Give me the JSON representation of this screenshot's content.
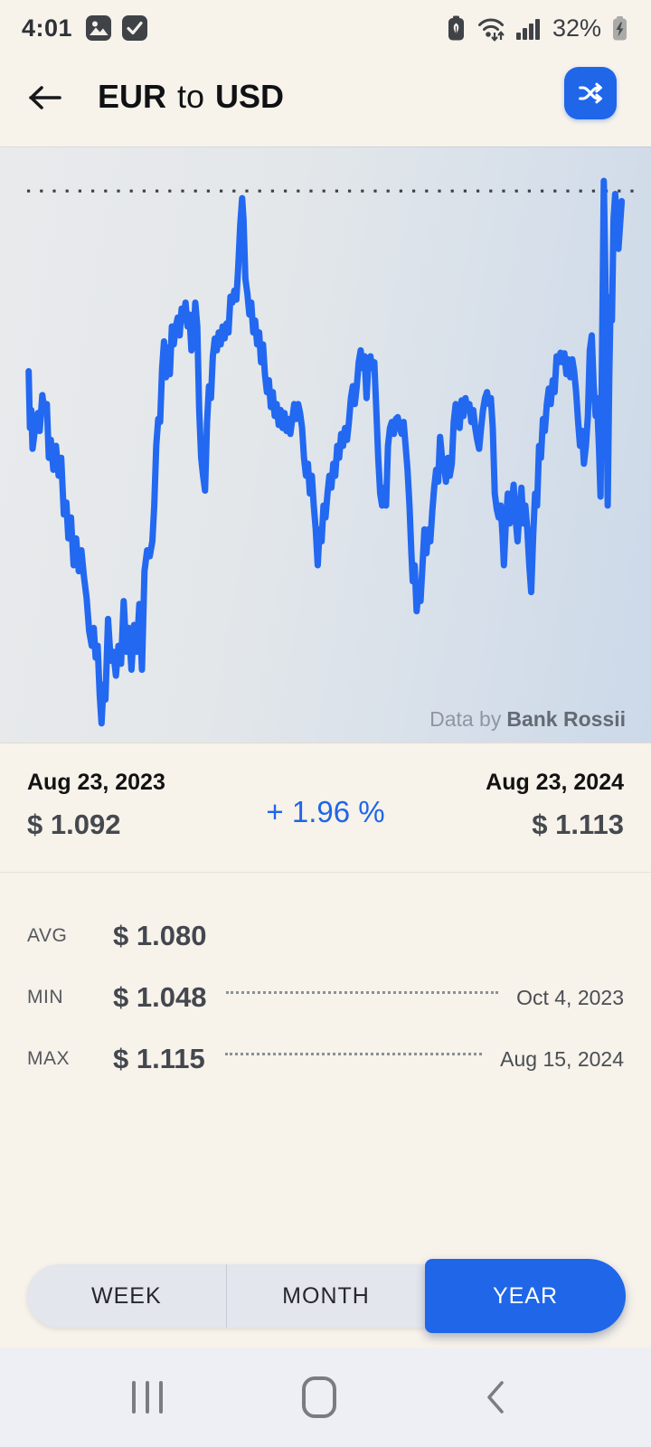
{
  "status_bar": {
    "time": "4:01",
    "battery_percent": "32%",
    "left_icons": [
      "screenshot-icon",
      "checkmark-icon"
    ],
    "right_icons": [
      "battery-saver-icon",
      "wifi-arrows-icon",
      "signal-bars-icon",
      "battery-charging-icon"
    ]
  },
  "header": {
    "title_from": "EUR",
    "title_connector": "to",
    "title_to": "USD",
    "back_label": "back",
    "swap_label": "swap-currencies"
  },
  "chart": {
    "source_prefix": "Data by",
    "source_name": "Bank Rossii"
  },
  "chart_data": {
    "type": "line",
    "title": "EUR to USD exchange rate, 1 year",
    "x_range": [
      "Aug 23, 2023",
      "Aug 23, 2024"
    ],
    "y_unit": "USD per EUR",
    "start_value": 1.092,
    "end_value": 1.113,
    "avg_value": 1.08,
    "min": {
      "value": 1.048,
      "date": "Oct 4, 2023"
    },
    "max": {
      "value": 1.115,
      "date": "Aug 15, 2024"
    },
    "change_percent": 1.96,
    "line_color": "#2268f0",
    "max_line_frac": 0.073,
    "grid": "none",
    "path": [
      [
        0.044,
        0.375
      ],
      [
        0.046,
        0.47
      ],
      [
        0.048,
        0.44
      ],
      [
        0.05,
        0.505
      ],
      [
        0.054,
        0.47
      ],
      [
        0.058,
        0.445
      ],
      [
        0.061,
        0.475
      ],
      [
        0.065,
        0.415
      ],
      [
        0.068,
        0.44
      ],
      [
        0.072,
        0.43
      ],
      [
        0.075,
        0.52
      ],
      [
        0.078,
        0.49
      ],
      [
        0.082,
        0.54
      ],
      [
        0.086,
        0.5
      ],
      [
        0.09,
        0.55
      ],
      [
        0.094,
        0.52
      ],
      [
        0.098,
        0.615
      ],
      [
        0.102,
        0.595
      ],
      [
        0.105,
        0.655
      ],
      [
        0.109,
        0.62
      ],
      [
        0.113,
        0.7
      ],
      [
        0.117,
        0.655
      ],
      [
        0.121,
        0.71
      ],
      [
        0.125,
        0.675
      ],
      [
        0.129,
        0.72
      ],
      [
        0.133,
        0.755
      ],
      [
        0.137,
        0.81
      ],
      [
        0.141,
        0.835
      ],
      [
        0.144,
        0.805
      ],
      [
        0.147,
        0.855
      ],
      [
        0.15,
        0.835
      ],
      [
        0.153,
        0.915
      ],
      [
        0.156,
        0.965
      ],
      [
        0.159,
        0.9
      ],
      [
        0.162,
        0.925
      ],
      [
        0.166,
        0.79
      ],
      [
        0.17,
        0.86
      ],
      [
        0.174,
        0.845
      ],
      [
        0.178,
        0.885
      ],
      [
        0.182,
        0.835
      ],
      [
        0.186,
        0.865
      ],
      [
        0.19,
        0.76
      ],
      [
        0.194,
        0.845
      ],
      [
        0.198,
        0.805
      ],
      [
        0.202,
        0.875
      ],
      [
        0.206,
        0.8
      ],
      [
        0.21,
        0.845
      ],
      [
        0.214,
        0.765
      ],
      [
        0.218,
        0.875
      ],
      [
        0.222,
        0.71
      ],
      [
        0.226,
        0.675
      ],
      [
        0.23,
        0.685
      ],
      [
        0.234,
        0.66
      ],
      [
        0.237,
        0.6
      ],
      [
        0.24,
        0.5
      ],
      [
        0.243,
        0.455
      ],
      [
        0.246,
        0.46
      ],
      [
        0.249,
        0.37
      ],
      [
        0.252,
        0.325
      ],
      [
        0.255,
        0.385
      ],
      [
        0.258,
        0.335
      ],
      [
        0.261,
        0.38
      ],
      [
        0.264,
        0.3
      ],
      [
        0.267,
        0.33
      ],
      [
        0.27,
        0.3
      ],
      [
        0.273,
        0.285
      ],
      [
        0.276,
        0.315
      ],
      [
        0.279,
        0.27
      ],
      [
        0.282,
        0.29
      ],
      [
        0.285,
        0.26
      ],
      [
        0.288,
        0.3
      ],
      [
        0.291,
        0.28
      ],
      [
        0.294,
        0.34
      ],
      [
        0.297,
        0.32
      ],
      [
        0.3,
        0.26
      ],
      [
        0.303,
        0.3
      ],
      [
        0.306,
        0.44
      ],
      [
        0.309,
        0.52
      ],
      [
        0.312,
        0.55
      ],
      [
        0.315,
        0.575
      ],
      [
        0.318,
        0.46
      ],
      [
        0.321,
        0.4
      ],
      [
        0.324,
        0.42
      ],
      [
        0.327,
        0.35
      ],
      [
        0.33,
        0.32
      ],
      [
        0.333,
        0.34
      ],
      [
        0.336,
        0.31
      ],
      [
        0.339,
        0.33
      ],
      [
        0.342,
        0.3
      ],
      [
        0.345,
        0.32
      ],
      [
        0.348,
        0.295
      ],
      [
        0.351,
        0.31
      ],
      [
        0.354,
        0.25
      ],
      [
        0.357,
        0.26
      ],
      [
        0.36,
        0.24
      ],
      [
        0.363,
        0.255
      ],
      [
        0.366,
        0.2
      ],
      [
        0.369,
        0.13
      ],
      [
        0.372,
        0.085
      ],
      [
        0.374,
        0.12
      ],
      [
        0.377,
        0.22
      ],
      [
        0.38,
        0.245
      ],
      [
        0.383,
        0.28
      ],
      [
        0.386,
        0.26
      ],
      [
        0.389,
        0.31
      ],
      [
        0.392,
        0.29
      ],
      [
        0.395,
        0.33
      ],
      [
        0.398,
        0.31
      ],
      [
        0.401,
        0.36
      ],
      [
        0.404,
        0.33
      ],
      [
        0.407,
        0.38
      ],
      [
        0.41,
        0.41
      ],
      [
        0.413,
        0.39
      ],
      [
        0.416,
        0.435
      ],
      [
        0.419,
        0.41
      ],
      [
        0.422,
        0.45
      ],
      [
        0.425,
        0.43
      ],
      [
        0.428,
        0.465
      ],
      [
        0.431,
        0.44
      ],
      [
        0.434,
        0.47
      ],
      [
        0.437,
        0.445
      ],
      [
        0.44,
        0.475
      ],
      [
        0.443,
        0.455
      ],
      [
        0.446,
        0.48
      ],
      [
        0.449,
        0.455
      ],
      [
        0.452,
        0.43
      ],
      [
        0.455,
        0.455
      ],
      [
        0.458,
        0.43
      ],
      [
        0.461,
        0.445
      ],
      [
        0.464,
        0.47
      ],
      [
        0.467,
        0.52
      ],
      [
        0.47,
        0.55
      ],
      [
        0.473,
        0.53
      ],
      [
        0.476,
        0.58
      ],
      [
        0.479,
        0.55
      ],
      [
        0.482,
        0.6
      ],
      [
        0.485,
        0.64
      ],
      [
        0.488,
        0.7
      ],
      [
        0.491,
        0.64
      ],
      [
        0.494,
        0.66
      ],
      [
        0.497,
        0.6
      ],
      [
        0.5,
        0.62
      ],
      [
        0.503,
        0.58
      ],
      [
        0.506,
        0.55
      ],
      [
        0.509,
        0.57
      ],
      [
        0.512,
        0.53
      ],
      [
        0.515,
        0.55
      ],
      [
        0.518,
        0.5
      ],
      [
        0.521,
        0.52
      ],
      [
        0.524,
        0.48
      ],
      [
        0.527,
        0.5
      ],
      [
        0.53,
        0.47
      ],
      [
        0.533,
        0.49
      ],
      [
        0.536,
        0.46
      ],
      [
        0.539,
        0.42
      ],
      [
        0.542,
        0.4
      ],
      [
        0.545,
        0.43
      ],
      [
        0.548,
        0.4
      ],
      [
        0.551,
        0.36
      ],
      [
        0.554,
        0.34
      ],
      [
        0.557,
        0.37
      ],
      [
        0.56,
        0.35
      ],
      [
        0.563,
        0.42
      ],
      [
        0.566,
        0.36
      ],
      [
        0.569,
        0.35
      ],
      [
        0.572,
        0.37
      ],
      [
        0.575,
        0.36
      ],
      [
        0.578,
        0.44
      ],
      [
        0.581,
        0.52
      ],
      [
        0.584,
        0.58
      ],
      [
        0.587,
        0.6
      ],
      [
        0.59,
        0.57
      ],
      [
        0.593,
        0.6
      ],
      [
        0.596,
        0.5
      ],
      [
        0.599,
        0.47
      ],
      [
        0.602,
        0.46
      ],
      [
        0.605,
        0.48
      ],
      [
        0.608,
        0.455
      ],
      [
        0.611,
        0.452
      ],
      [
        0.614,
        0.47
      ],
      [
        0.617,
        0.48
      ],
      [
        0.62,
        0.46
      ],
      [
        0.623,
        0.5
      ],
      [
        0.626,
        0.54
      ],
      [
        0.629,
        0.6
      ],
      [
        0.632,
        0.68
      ],
      [
        0.634,
        0.727
      ],
      [
        0.637,
        0.7
      ],
      [
        0.64,
        0.777
      ],
      [
        0.643,
        0.74
      ],
      [
        0.646,
        0.76
      ],
      [
        0.649,
        0.7
      ],
      [
        0.652,
        0.64
      ],
      [
        0.655,
        0.68
      ],
      [
        0.658,
        0.64
      ],
      [
        0.661,
        0.66
      ],
      [
        0.664,
        0.61
      ],
      [
        0.667,
        0.57
      ],
      [
        0.67,
        0.54
      ],
      [
        0.673,
        0.56
      ],
      [
        0.676,
        0.485
      ],
      [
        0.679,
        0.52
      ],
      [
        0.682,
        0.53
      ],
      [
        0.685,
        0.56
      ],
      [
        0.688,
        0.52
      ],
      [
        0.691,
        0.55
      ],
      [
        0.694,
        0.53
      ],
      [
        0.697,
        0.46
      ],
      [
        0.7,
        0.43
      ],
      [
        0.703,
        0.46
      ],
      [
        0.706,
        0.47
      ],
      [
        0.709,
        0.424
      ],
      [
        0.712,
        0.45
      ],
      [
        0.715,
        0.42
      ],
      [
        0.718,
        0.44
      ],
      [
        0.721,
        0.43
      ],
      [
        0.724,
        0.46
      ],
      [
        0.727,
        0.44
      ],
      [
        0.73,
        0.47
      ],
      [
        0.733,
        0.49
      ],
      [
        0.736,
        0.505
      ],
      [
        0.739,
        0.47
      ],
      [
        0.742,
        0.44
      ],
      [
        0.745,
        0.42
      ],
      [
        0.748,
        0.41
      ],
      [
        0.751,
        0.43
      ],
      [
        0.754,
        0.42
      ],
      [
        0.757,
        0.47
      ],
      [
        0.76,
        0.58
      ],
      [
        0.763,
        0.606
      ],
      [
        0.766,
        0.62
      ],
      [
        0.769,
        0.6
      ],
      [
        0.772,
        0.65
      ],
      [
        0.774,
        0.7
      ],
      [
        0.777,
        0.63
      ],
      [
        0.78,
        0.58
      ],
      [
        0.783,
        0.63
      ],
      [
        0.786,
        0.6
      ],
      [
        0.789,
        0.565
      ],
      [
        0.792,
        0.62
      ],
      [
        0.795,
        0.66
      ],
      [
        0.798,
        0.61
      ],
      [
        0.801,
        0.57
      ],
      [
        0.804,
        0.63
      ],
      [
        0.807,
        0.6
      ],
      [
        0.81,
        0.64
      ],
      [
        0.813,
        0.7
      ],
      [
        0.816,
        0.745
      ],
      [
        0.819,
        0.65
      ],
      [
        0.822,
        0.58
      ],
      [
        0.825,
        0.6
      ],
      [
        0.828,
        0.5
      ],
      [
        0.831,
        0.52
      ],
      [
        0.834,
        0.455
      ],
      [
        0.837,
        0.475
      ],
      [
        0.84,
        0.43
      ],
      [
        0.843,
        0.404
      ],
      [
        0.846,
        0.43
      ],
      [
        0.849,
        0.39
      ],
      [
        0.852,
        0.41
      ],
      [
        0.855,
        0.35
      ],
      [
        0.858,
        0.36
      ],
      [
        0.861,
        0.344
      ],
      [
        0.864,
        0.36
      ],
      [
        0.867,
        0.345
      ],
      [
        0.87,
        0.38
      ],
      [
        0.873,
        0.355
      ],
      [
        0.876,
        0.385
      ],
      [
        0.879,
        0.355
      ],
      [
        0.882,
        0.375
      ],
      [
        0.885,
        0.41
      ],
      [
        0.888,
        0.46
      ],
      [
        0.891,
        0.5
      ],
      [
        0.894,
        0.475
      ],
      [
        0.897,
        0.53
      ],
      [
        0.9,
        0.5
      ],
      [
        0.903,
        0.45
      ],
      [
        0.906,
        0.34
      ],
      [
        0.909,
        0.315
      ],
      [
        0.912,
        0.4
      ],
      [
        0.915,
        0.45
      ],
      [
        0.917,
        0.42
      ],
      [
        0.92,
        0.5
      ],
      [
        0.9225,
        0.585
      ],
      [
        0.925,
        0.32
      ],
      [
        0.9275,
        0.056
      ],
      [
        0.93,
        0.22
      ],
      [
        0.9315,
        0.38
      ],
      [
        0.9335,
        0.6
      ],
      [
        0.936,
        0.38
      ],
      [
        0.938,
        0.25
      ],
      [
        0.94,
        0.29
      ],
      [
        0.9425,
        0.12
      ],
      [
        0.945,
        0.078
      ],
      [
        0.9475,
        0.12
      ],
      [
        0.95,
        0.17
      ],
      [
        0.9525,
        0.13
      ],
      [
        0.955,
        0.09
      ]
    ]
  },
  "summary": {
    "start_date": "Aug 23, 2023",
    "start_value": "$ 1.092",
    "change": "+ 1.96 %",
    "end_date": "Aug 23, 2024",
    "end_value": "$ 1.113"
  },
  "stats": {
    "rows": [
      {
        "label": "AVG",
        "value": "$ 1.080",
        "date": ""
      },
      {
        "label": "MIN",
        "value": "$ 1.048",
        "date": "Oct 4, 2023"
      },
      {
        "label": "MAX",
        "value": "$ 1.115",
        "date": "Aug 15, 2024"
      }
    ]
  },
  "range_selector": {
    "options": [
      {
        "label": "WEEK",
        "selected": false
      },
      {
        "label": "MONTH",
        "selected": false
      },
      {
        "label": "YEAR",
        "selected": true
      }
    ]
  },
  "navbar": {
    "buttons": [
      "recents",
      "home",
      "back"
    ]
  },
  "colors": {
    "accent_blue": "#1f66e8",
    "line_blue": "#2268f0",
    "background_cream": "#f7f2ea",
    "chart_bg_left": "#e9eaec",
    "chart_bg_right": "#ccd9e9",
    "navbar_bg": "#edeff4"
  }
}
